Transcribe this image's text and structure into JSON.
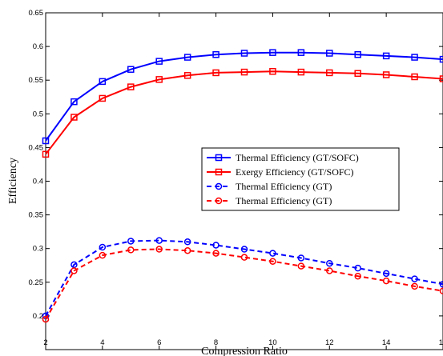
{
  "chart_data": {
    "type": "line",
    "xlabel": "Compression Ratio",
    "ylabel": "Efficiency",
    "xlim": [
      2,
      16
    ],
    "ylim": [
      0.15,
      0.65
    ],
    "xticks": [
      2,
      4,
      6,
      8,
      10,
      12,
      14,
      16
    ],
    "xtick_labels": [
      "2",
      "4",
      "6",
      "8",
      "10",
      "12",
      "14",
      "16"
    ],
    "yticks": [
      0.2,
      0.25,
      0.3,
      0.35,
      0.4,
      0.45,
      0.5,
      0.55,
      0.6,
      0.65
    ],
    "ytick_labels": [
      "0.2",
      "0.25",
      "0.3",
      "0.35",
      "0.4",
      "0.45",
      "0.5",
      "0.55",
      "0.6",
      "0.65"
    ],
    "grid": false,
    "legend_position": "center-right",
    "x": [
      2,
      3,
      4,
      5,
      6,
      7,
      8,
      9,
      10,
      11,
      12,
      13,
      14,
      15,
      16
    ],
    "series": [
      {
        "name": "Thermal Efficiency (GT/SOFC)",
        "color": "#0000ff",
        "linestyle": "solid",
        "marker": "square",
        "values": [
          0.46,
          0.518,
          0.548,
          0.566,
          0.578,
          0.584,
          0.588,
          0.59,
          0.591,
          0.591,
          0.59,
          0.588,
          0.586,
          0.584,
          0.581
        ]
      },
      {
        "name": "Exergy Efficiency (GT/SOFC)",
        "color": "#ff0000",
        "linestyle": "solid",
        "marker": "square",
        "values": [
          0.44,
          0.495,
          0.523,
          0.54,
          0.551,
          0.557,
          0.561,
          0.562,
          0.563,
          0.562,
          0.561,
          0.56,
          0.558,
          0.555,
          0.552
        ]
      },
      {
        "name": "Thermal Efficiency (GT)",
        "color": "#0000ff",
        "linestyle": "dashed",
        "marker": "circle",
        "values": [
          0.2,
          0.276,
          0.302,
          0.311,
          0.312,
          0.31,
          0.305,
          0.299,
          0.293,
          0.286,
          0.278,
          0.271,
          0.263,
          0.255,
          0.247
        ]
      },
      {
        "name": "Thermal Efficiency (GT)",
        "color": "#ff0000",
        "linestyle": "dashed",
        "marker": "circle",
        "values": [
          0.195,
          0.267,
          0.29,
          0.298,
          0.299,
          0.297,
          0.293,
          0.287,
          0.281,
          0.274,
          0.267,
          0.259,
          0.252,
          0.244,
          0.237
        ]
      }
    ]
  }
}
